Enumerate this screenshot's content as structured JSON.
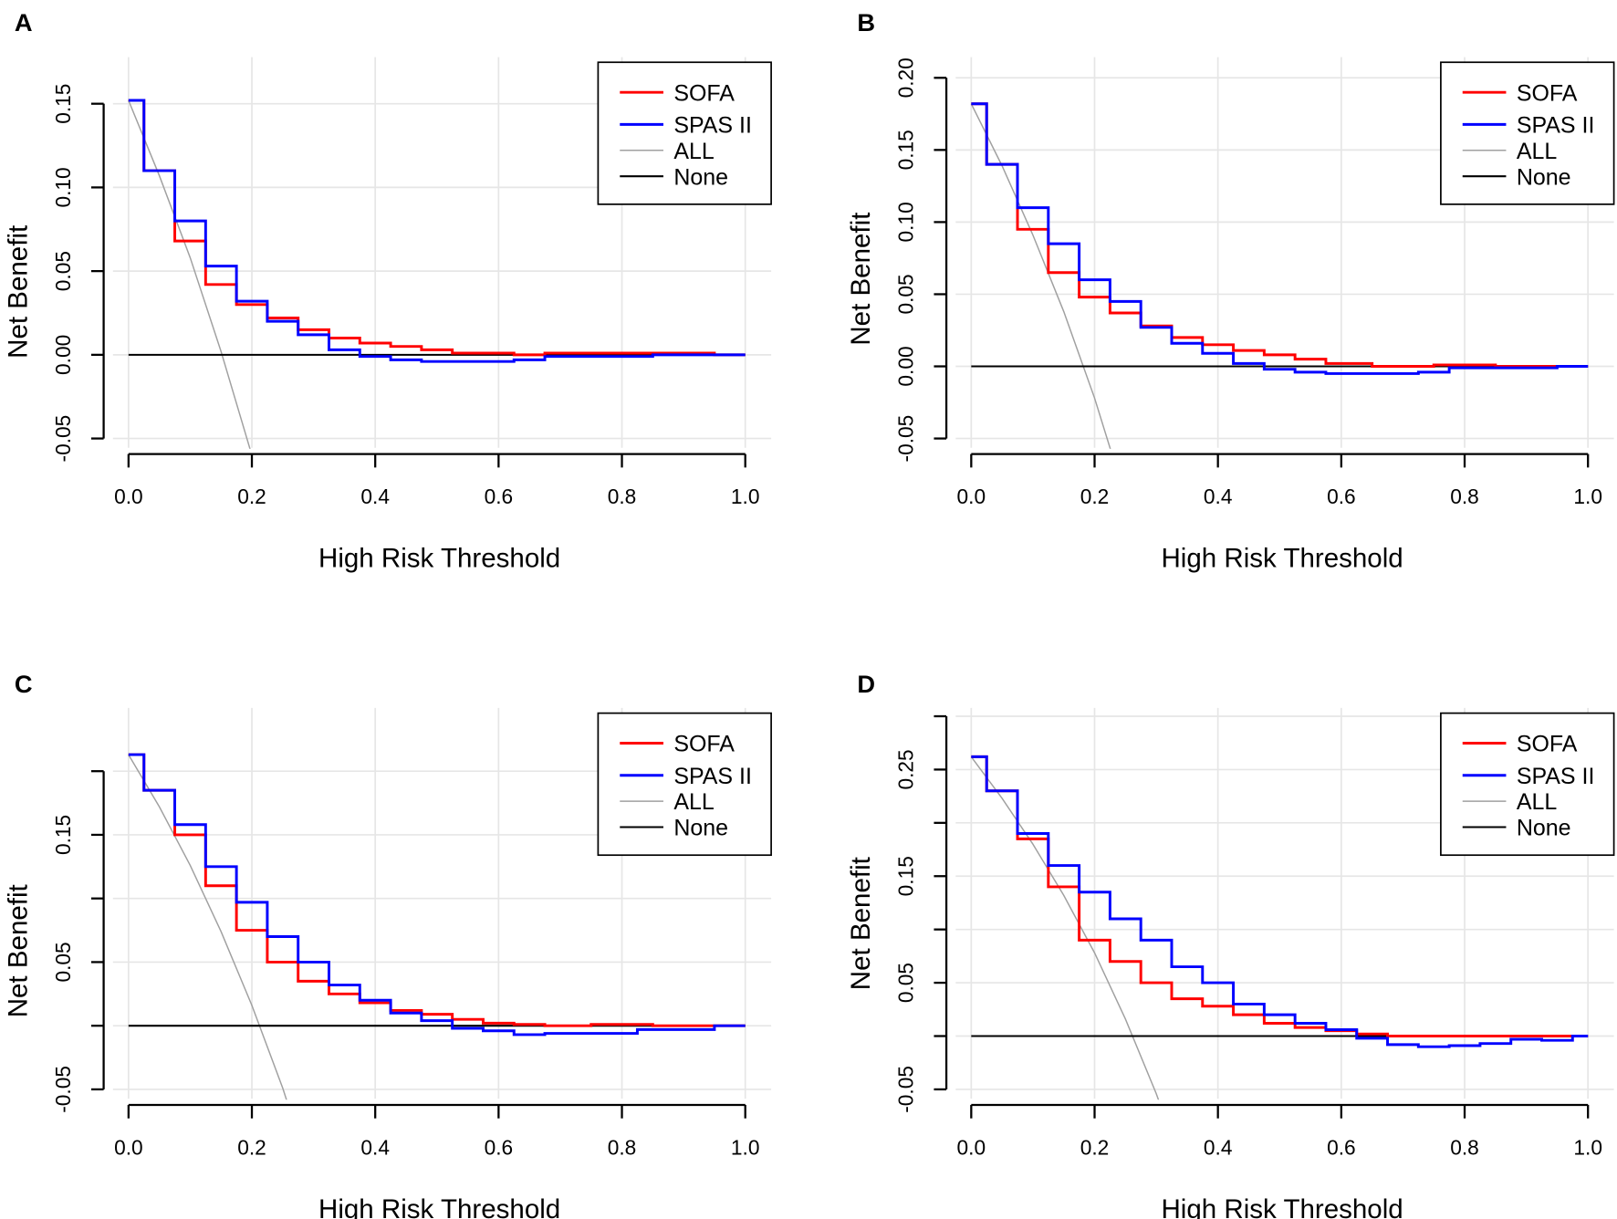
{
  "chart_data": [
    {
      "panel": "A",
      "type": "line",
      "xlabel": "High Risk Threshold",
      "ylabel": "Net Benefit",
      "xlim": [
        0,
        1
      ],
      "ylim": [
        -0.05,
        0.15
      ],
      "xticks": [
        "0.0",
        "0.2",
        "0.4",
        "0.6",
        "0.8",
        "1.0"
      ],
      "yticks": [
        {
          "v": -0.05,
          "label": "-0.05"
        },
        {
          "v": 0,
          "label": "0.00"
        },
        {
          "v": 0.05,
          "label": "0.05"
        },
        {
          "v": 0.1,
          "label": "0.10"
        },
        {
          "v": 0.15,
          "label": "0.15"
        }
      ],
      "grid": true,
      "legend_position": "top-right",
      "series": [
        {
          "name": "SOFA",
          "color": "#ff0000",
          "x": [
            0,
            0.05,
            0.1,
            0.15,
            0.2,
            0.25,
            0.3,
            0.35,
            0.4,
            0.45,
            0.5,
            0.55,
            0.6,
            0.65,
            0.7,
            0.8,
            0.9,
            1.0
          ],
          "y": [
            0.152,
            0.11,
            0.068,
            0.042,
            0.03,
            0.022,
            0.015,
            0.01,
            0.007,
            0.005,
            0.003,
            0.001,
            0.001,
            0,
            0.001,
            0.001,
            0.001,
            0
          ]
        },
        {
          "name": "SPAS II",
          "color": "#0000ff",
          "x": [
            0,
            0.05,
            0.1,
            0.15,
            0.2,
            0.25,
            0.3,
            0.35,
            0.4,
            0.45,
            0.5,
            0.6,
            0.65,
            0.7,
            0.8,
            0.9,
            1.0
          ],
          "y": [
            0.152,
            0.11,
            0.08,
            0.053,
            0.032,
            0.02,
            0.012,
            0.003,
            -0.001,
            -0.003,
            -0.004,
            -0.004,
            -0.003,
            -0.001,
            -0.001,
            0,
            0
          ]
        },
        {
          "name": "ALL",
          "color": "#a0a0a0",
          "x": [
            0,
            0.05,
            0.1,
            0.15,
            0.2
          ],
          "y": [
            0.152,
            0.107,
            0.058,
            0.002,
            -0.06
          ]
        },
        {
          "name": "None",
          "color": "#000000",
          "x": [
            0,
            1
          ],
          "y": [
            0,
            0
          ]
        }
      ]
    },
    {
      "panel": "B",
      "type": "line",
      "xlabel": "High Risk Threshold",
      "ylabel": "Net Benefit",
      "xlim": [
        0,
        1
      ],
      "ylim": [
        -0.05,
        0.2
      ],
      "xticks": [
        "0.0",
        "0.2",
        "0.4",
        "0.6",
        "0.8",
        "1.0"
      ],
      "yticks": [
        {
          "v": -0.05,
          "label": "-0.05"
        },
        {
          "v": 0,
          "label": "0.00"
        },
        {
          "v": 0.05,
          "label": "0.05"
        },
        {
          "v": 0.1,
          "label": "0.10"
        },
        {
          "v": 0.15,
          "label": "0.15"
        },
        {
          "v": 0.2,
          "label": "0.20"
        }
      ],
      "grid": true,
      "legend_position": "top-right",
      "series": [
        {
          "name": "SOFA",
          "color": "#ff0000",
          "x": [
            0,
            0.05,
            0.1,
            0.15,
            0.2,
            0.25,
            0.3,
            0.35,
            0.4,
            0.45,
            0.5,
            0.55,
            0.6,
            0.7,
            0.8,
            0.9,
            1.0
          ],
          "y": [
            0.182,
            0.14,
            0.095,
            0.065,
            0.048,
            0.037,
            0.028,
            0.02,
            0.015,
            0.011,
            0.008,
            0.005,
            0.002,
            0,
            0.001,
            0,
            0
          ]
        },
        {
          "name": "SPAS II",
          "color": "#0000ff",
          "x": [
            0,
            0.05,
            0.1,
            0.15,
            0.2,
            0.25,
            0.3,
            0.35,
            0.4,
            0.45,
            0.5,
            0.55,
            0.6,
            0.7,
            0.75,
            0.8,
            0.9,
            1.0
          ],
          "y": [
            0.182,
            0.14,
            0.11,
            0.085,
            0.06,
            0.045,
            0.027,
            0.016,
            0.009,
            0.002,
            -0.002,
            -0.004,
            -0.005,
            -0.005,
            -0.004,
            -0.001,
            -0.001,
            0
          ]
        },
        {
          "name": "ALL",
          "color": "#a0a0a0",
          "x": [
            0,
            0.05,
            0.1,
            0.15,
            0.2,
            0.25
          ],
          "y": [
            0.182,
            0.139,
            0.091,
            0.038,
            -0.022,
            -0.091
          ]
        },
        {
          "name": "None",
          "color": "#000000",
          "x": [
            0,
            1
          ],
          "y": [
            0,
            0
          ]
        }
      ]
    },
    {
      "panel": "C",
      "type": "line",
      "xlabel": "High Risk Threshold",
      "ylabel": "Net Benefit",
      "xlim": [
        0,
        1
      ],
      "ylim": [
        -0.05,
        0.2
      ],
      "xticks": [
        "0.0",
        "0.2",
        "0.4",
        "0.6",
        "0.8",
        "1.0"
      ],
      "yticks": [
        {
          "v": -0.05,
          "label": "-0.05"
        },
        {
          "v": 0,
          "label": ""
        },
        {
          "v": 0.05,
          "label": "0.05"
        },
        {
          "v": 0.1,
          "label": ""
        },
        {
          "v": 0.15,
          "label": "0.15"
        },
        {
          "v": 0.2,
          "label": ""
        }
      ],
      "grid": true,
      "legend_position": "top-right",
      "series": [
        {
          "name": "SOFA",
          "color": "#ff0000",
          "x": [
            0,
            0.05,
            0.1,
            0.15,
            0.2,
            0.25,
            0.3,
            0.35,
            0.4,
            0.45,
            0.5,
            0.55,
            0.6,
            0.65,
            0.7,
            0.8,
            0.9,
            1.0
          ],
          "y": [
            0.213,
            0.185,
            0.15,
            0.11,
            0.075,
            0.05,
            0.035,
            0.025,
            0.018,
            0.012,
            0.009,
            0.005,
            0.002,
            0.001,
            0,
            0.001,
            0,
            0
          ]
        },
        {
          "name": "SPAS II",
          "color": "#0000ff",
          "x": [
            0,
            0.05,
            0.1,
            0.15,
            0.2,
            0.25,
            0.3,
            0.35,
            0.4,
            0.45,
            0.5,
            0.55,
            0.6,
            0.65,
            0.7,
            0.8,
            0.85,
            0.9,
            1.0
          ],
          "y": [
            0.213,
            0.185,
            0.158,
            0.125,
            0.097,
            0.07,
            0.05,
            0.032,
            0.02,
            0.01,
            0.004,
            -0.002,
            -0.004,
            -0.007,
            -0.006,
            -0.006,
            -0.003,
            -0.003,
            0
          ]
        },
        {
          "name": "ALL",
          "color": "#a0a0a0",
          "x": [
            0,
            0.05,
            0.1,
            0.15,
            0.2,
            0.25,
            0.3
          ],
          "y": [
            0.213,
            0.172,
            0.126,
            0.074,
            0.016,
            -0.049,
            -0.124
          ]
        },
        {
          "name": "None",
          "color": "#000000",
          "x": [
            0,
            1
          ],
          "y": [
            0,
            0
          ]
        }
      ]
    },
    {
      "panel": "D",
      "type": "line",
      "xlabel": "High Risk Threshold",
      "ylabel": "Net Benefit",
      "xlim": [
        0,
        1
      ],
      "ylim": [
        -0.05,
        0.3
      ],
      "xticks": [
        "0.0",
        "0.2",
        "0.4",
        "0.6",
        "0.8",
        "1.0"
      ],
      "yticks": [
        {
          "v": -0.05,
          "label": "-0.05"
        },
        {
          "v": 0,
          "label": ""
        },
        {
          "v": 0.05,
          "label": "0.05"
        },
        {
          "v": 0.1,
          "label": ""
        },
        {
          "v": 0.15,
          "label": "0.15"
        },
        {
          "v": 0.2,
          "label": ""
        },
        {
          "v": 0.25,
          "label": "0.25"
        },
        {
          "v": 0.3,
          "label": ""
        }
      ],
      "grid": true,
      "legend_position": "top-right",
      "series": [
        {
          "name": "SOFA",
          "color": "#ff0000",
          "x": [
            0,
            0.05,
            0.1,
            0.15,
            0.2,
            0.25,
            0.3,
            0.35,
            0.4,
            0.45,
            0.5,
            0.55,
            0.6,
            0.65,
            0.7,
            0.8,
            0.9,
            1.0
          ],
          "y": [
            0.262,
            0.23,
            0.185,
            0.14,
            0.09,
            0.07,
            0.05,
            0.035,
            0.028,
            0.02,
            0.012,
            0.008,
            0.005,
            0.002,
            0,
            0,
            0,
            0
          ]
        },
        {
          "name": "SPAS II",
          "color": "#0000ff",
          "x": [
            0,
            0.05,
            0.1,
            0.15,
            0.2,
            0.25,
            0.3,
            0.35,
            0.4,
            0.45,
            0.5,
            0.55,
            0.6,
            0.65,
            0.7,
            0.75,
            0.8,
            0.85,
            0.9,
            0.95,
            1.0
          ],
          "y": [
            0.262,
            0.23,
            0.19,
            0.16,
            0.135,
            0.11,
            0.09,
            0.065,
            0.05,
            0.03,
            0.02,
            0.012,
            0.006,
            -0.002,
            -0.008,
            -0.01,
            -0.009,
            -0.007,
            -0.003,
            -0.004,
            0
          ]
        },
        {
          "name": "ALL",
          "color": "#a0a0a0",
          "x": [
            0,
            0.05,
            0.1,
            0.15,
            0.2,
            0.25,
            0.3,
            0.35
          ],
          "y": [
            0.262,
            0.223,
            0.18,
            0.132,
            0.078,
            0.016,
            -0.054,
            -0.135
          ]
        },
        {
          "name": "None",
          "color": "#000000",
          "x": [
            0,
            1
          ],
          "y": [
            0,
            0
          ]
        }
      ]
    }
  ]
}
